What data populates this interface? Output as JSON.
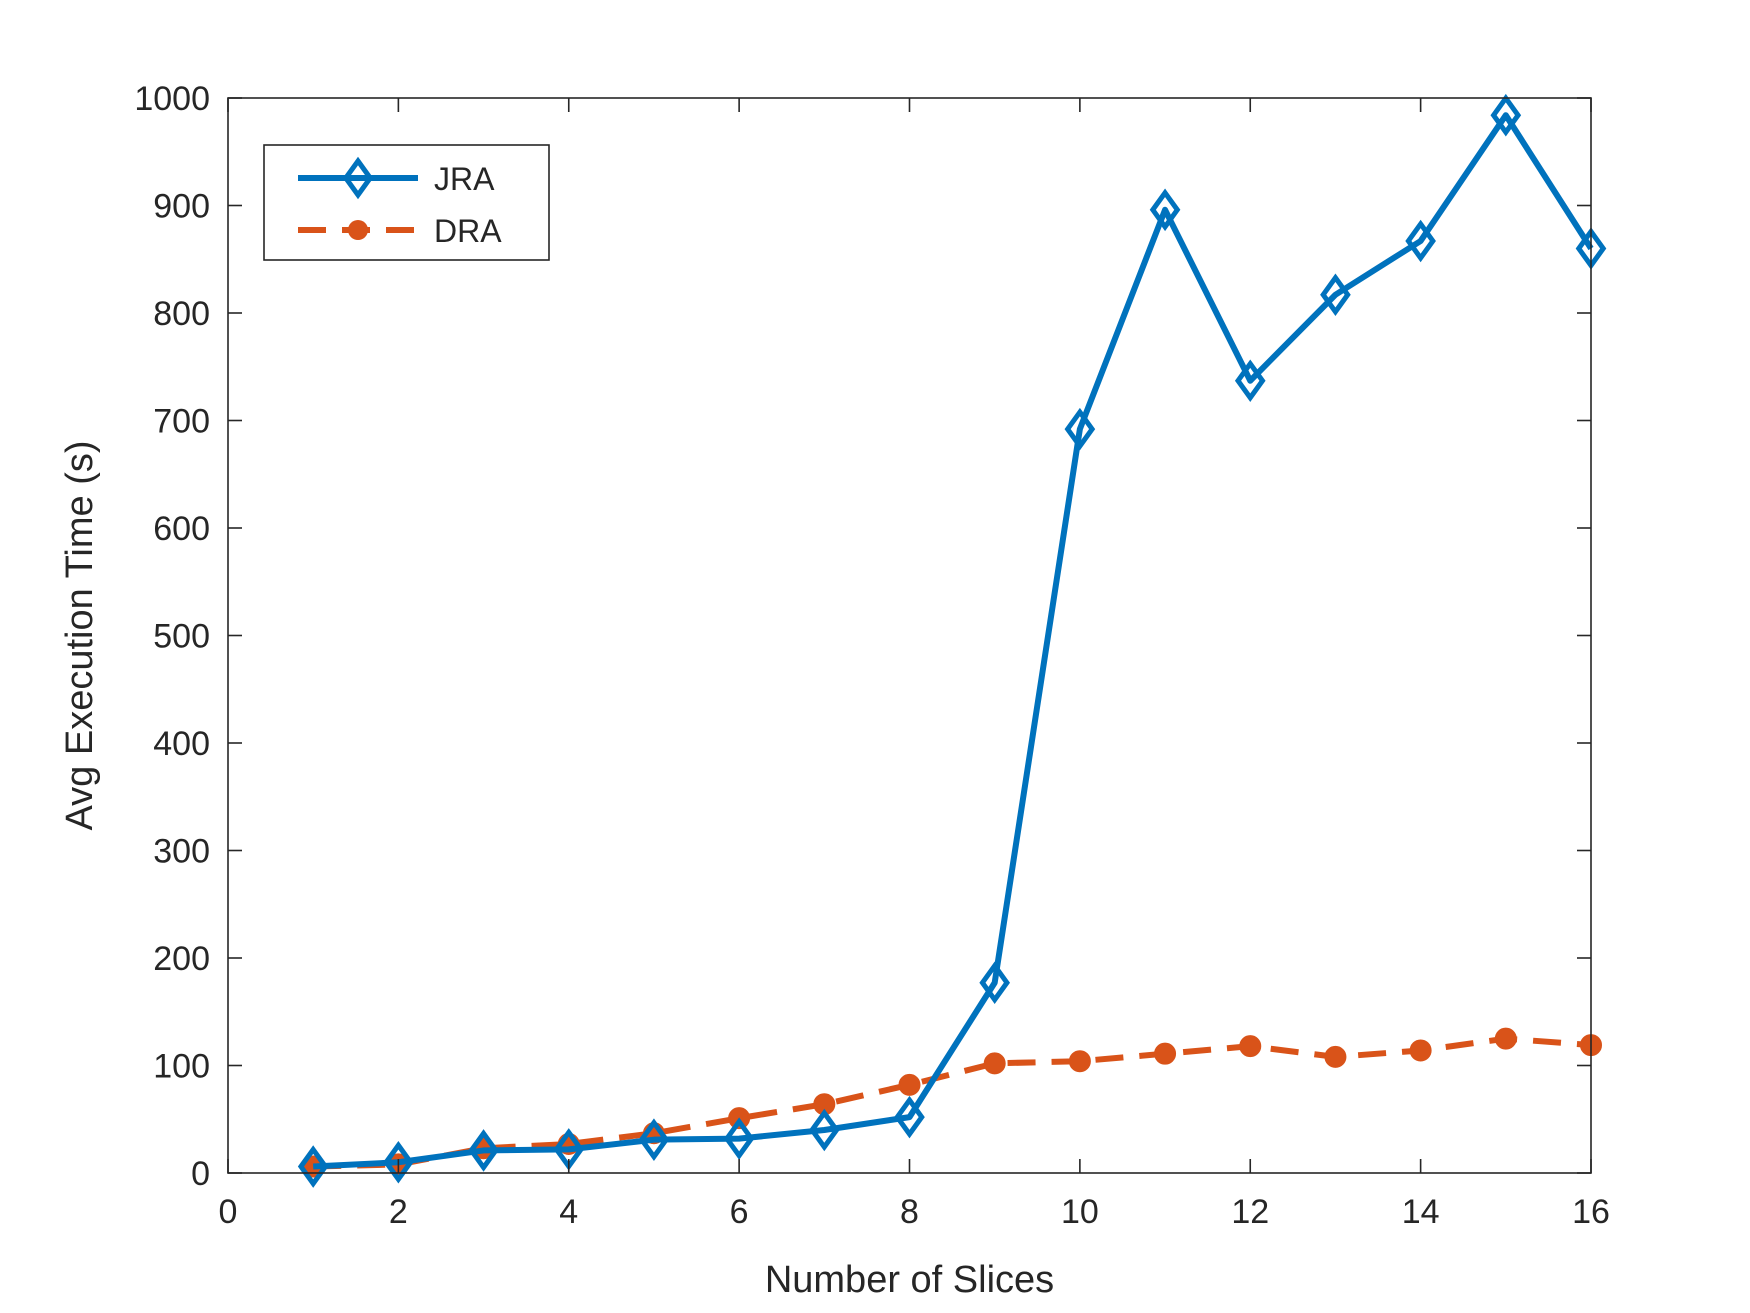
{
  "chart_data": {
    "type": "line",
    "title": "",
    "xlabel": "Number of Slices",
    "ylabel": "Avg Execution Time (s)",
    "xlim": [
      0,
      16
    ],
    "ylim": [
      0,
      1000
    ],
    "xticks": [
      0,
      2,
      4,
      6,
      8,
      10,
      12,
      14,
      16
    ],
    "yticks": [
      0,
      100,
      200,
      300,
      400,
      500,
      600,
      700,
      800,
      900,
      1000
    ],
    "grid": false,
    "legend_position": "top-left",
    "x": [
      1,
      2,
      3,
      4,
      5,
      6,
      7,
      8,
      9,
      10,
      11,
      12,
      13,
      14,
      15,
      16
    ],
    "series": [
      {
        "name": "JRA",
        "color": "#0072BD",
        "line_style": "solid",
        "marker": "diamond",
        "values": [
          6,
          10,
          21,
          22,
          31,
          32,
          40,
          52,
          177,
          692,
          896,
          737,
          817,
          867,
          984,
          860
        ]
      },
      {
        "name": "DRA",
        "color": "#D95319",
        "line_style": "dashed",
        "marker": "circle",
        "values": [
          6,
          8,
          23,
          27,
          37,
          51,
          64,
          82,
          102,
          104,
          111,
          118,
          108,
          114,
          125,
          119
        ]
      }
    ]
  }
}
